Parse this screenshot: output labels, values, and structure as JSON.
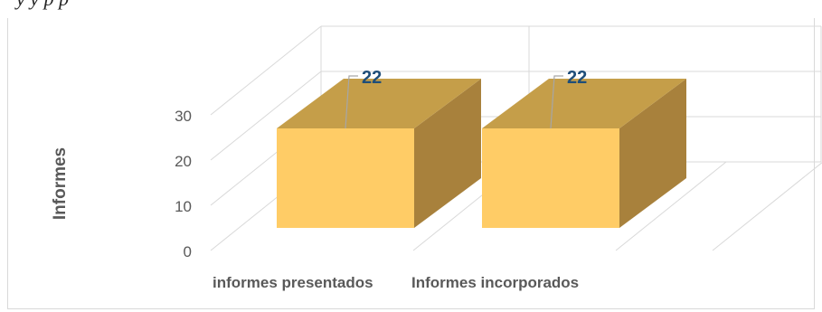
{
  "page": {
    "title_fragment": "y         y         p                                 p"
  },
  "chart_data": {
    "type": "bar",
    "title": "",
    "categories": [
      "informes presentados",
      "Informes incorporados"
    ],
    "series": [
      {
        "values": [
          22,
          22
        ]
      }
    ],
    "data_labels": [
      "22",
      "22"
    ],
    "xlabel": "",
    "ylabel": "Informes",
    "ylim": [
      0,
      30
    ],
    "yticks": [
      0,
      10,
      20,
      30
    ],
    "grid": true,
    "legend": "none",
    "style": "3d-column",
    "colors": {
      "front": "#ffcc66",
      "top": "#c59e49",
      "side": "#a8813c",
      "data_label": "#1f4e79",
      "axis_text": "#595959",
      "grid": "#d9d9d9"
    }
  }
}
